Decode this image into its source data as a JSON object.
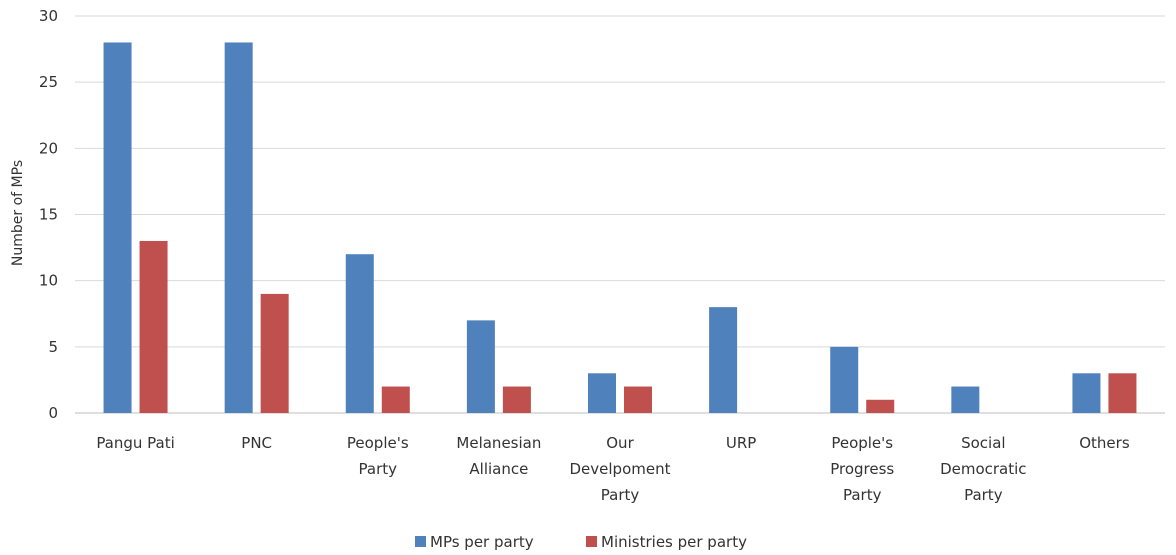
{
  "chart_data": {
    "type": "bar",
    "ylabel": "Number of MPs",
    "xlabel": "",
    "ylim": [
      0,
      30
    ],
    "yticks": [
      0,
      5,
      10,
      15,
      20,
      25,
      30
    ],
    "grid": true,
    "legend_position": "bottom",
    "categories": [
      [
        "Pangu Pati"
      ],
      [
        "PNC"
      ],
      [
        "People's",
        "Party"
      ],
      [
        "Melanesian",
        "Alliance"
      ],
      [
        "Our",
        "Develpoment",
        "Party"
      ],
      [
        "URP"
      ],
      [
        "People's",
        "Progress",
        "Party"
      ],
      [
        "Social",
        "Democratic",
        "Party"
      ],
      [
        "Others"
      ]
    ],
    "series": [
      {
        "name": "MPs per party",
        "color": "#4f81bd",
        "values": [
          28,
          28,
          12,
          7,
          3,
          8,
          5,
          2,
          3
        ]
      },
      {
        "name": "Ministries per party",
        "color": "#c0504d",
        "values": [
          13,
          9,
          2,
          2,
          2,
          0,
          1,
          0,
          3
        ]
      }
    ]
  }
}
